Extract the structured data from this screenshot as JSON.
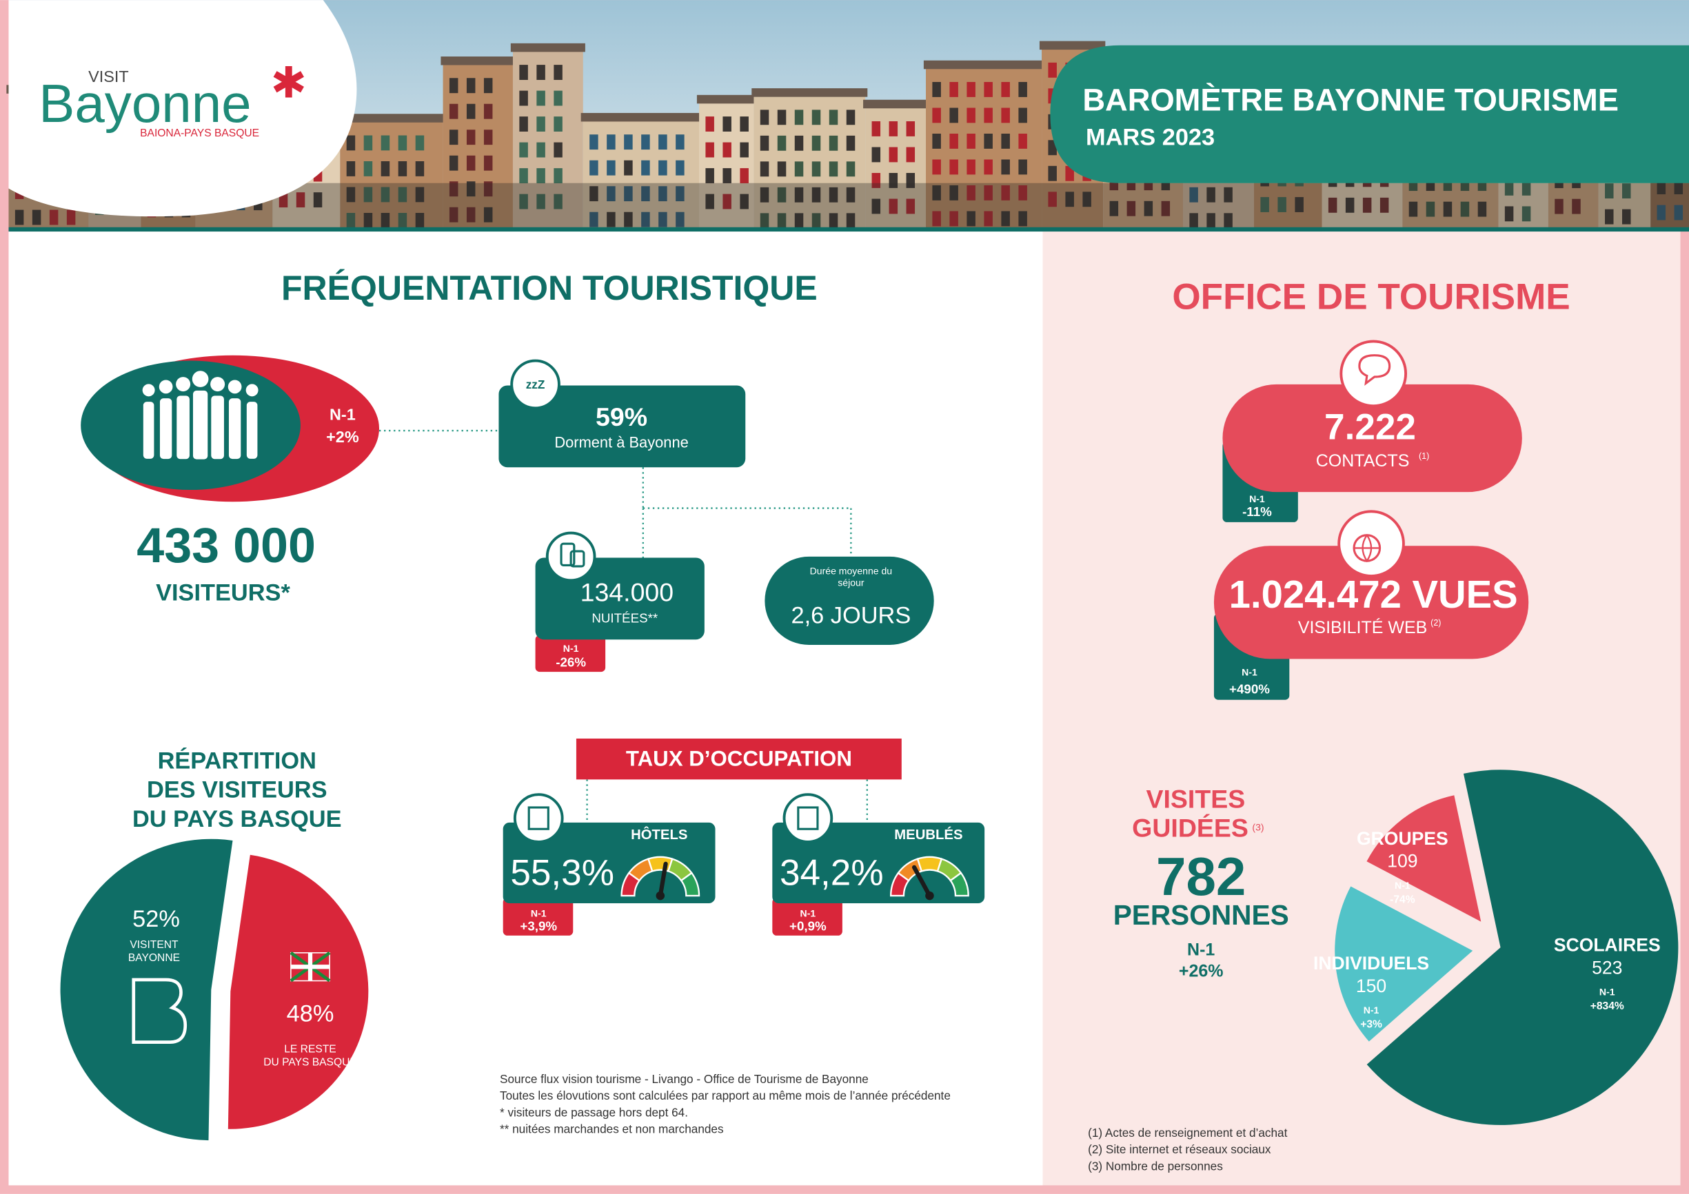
{
  "header": {
    "logo": {
      "visit": "VISIT",
      "name": "Bayonne",
      "tagline": "BAIONA-PAYS BASQUE"
    },
    "title": "BAROMÈTRE BAYONNE TOURISME",
    "subtitle": "MARS 2023"
  },
  "frequentation": {
    "title": "FRÉQUENTATION TOURISTIQUE",
    "visitors": {
      "n1_label": "N-1",
      "n1_change": "+2%",
      "value": "433 000",
      "label": "VISITEURS*"
    },
    "sleep": {
      "value": "59%",
      "label": "Dorment à Bayonne",
      "icon": "zzZ"
    },
    "nights": {
      "value": "134.000",
      "label": "NUITÉES**",
      "n1_label": "N-1",
      "n1_change": "-26%"
    },
    "stay": {
      "label_lines": [
        "Durée moyenne du",
        "séjour"
      ],
      "value": "2,6 JOURS"
    }
  },
  "repartition": {
    "title_lines": [
      "RÉPARTITION",
      "DES VISITEURS",
      "DU PAYS BASQUE"
    ],
    "chart": {
      "type": "pie",
      "values": [
        52,
        48
      ],
      "value_labels": [
        "52%",
        "48%"
      ],
      "labels": [
        [
          "VISITENT",
          "BAYONNE"
        ],
        [
          "LE RESTE",
          "DU PAYS BASQUE"
        ]
      ],
      "colors": [
        "#0f6e66",
        "#d9263a"
      ]
    }
  },
  "occupation": {
    "title": "TAUX D’OCCUPATION",
    "items": [
      {
        "name": "HÔTELS",
        "value": 55.3,
        "value_label": "55,3%",
        "n1_label": "N-1",
        "n1_change": "+3,9%"
      },
      {
        "name": "MEUBLÉS",
        "value": 34.2,
        "value_label": "34,2%",
        "n1_label": "N-1",
        "n1_change": "+0,9%"
      }
    ]
  },
  "sources": [
    "Source flux vision tourisme - Livango - Office de Tourisme de Bayonne",
    "Toutes les élovutions sont calculées par rapport au même mois de l’année précédente",
    "*  visiteurs de passage hors dept 64.",
    "**  nuitées marchandes et non marchandes"
  ],
  "office": {
    "title": "OFFICE DE TOURISME",
    "contacts": {
      "value": "7.222",
      "label": "CONTACTS",
      "ref": "(1)",
      "n1_label": "N-1",
      "n1_change": "-11%"
    },
    "web": {
      "value": "1.024.472 VUES",
      "label": "VISIBILITÉ WEB",
      "ref": "(2)",
      "n1_label": "N-1",
      "n1_change": "+490%"
    }
  },
  "guided": {
    "title_lines": [
      "VISITES",
      "GUIDÉES"
    ],
    "ref": "(3)",
    "total": "782",
    "unit": "PERSONNES",
    "n1_label": "N-1",
    "n1_change": "+26%",
    "chart": {
      "type": "pie",
      "categories": [
        "SCOLAIRES",
        "INDIVIDUELS",
        "GROUPES"
      ],
      "values": [
        523,
        150,
        109
      ],
      "n1_label": "N-1",
      "n1_changes": [
        "+834%",
        "+3%",
        "-74%"
      ],
      "colors": [
        "#0e6b62",
        "#52c3c8",
        "#e54b5b"
      ]
    }
  },
  "footnotes": [
    "(1) Actes de renseignement et d’achat",
    "(2) Site internet et réseaux sociaux",
    "(3) Nombre de personnes"
  ]
}
